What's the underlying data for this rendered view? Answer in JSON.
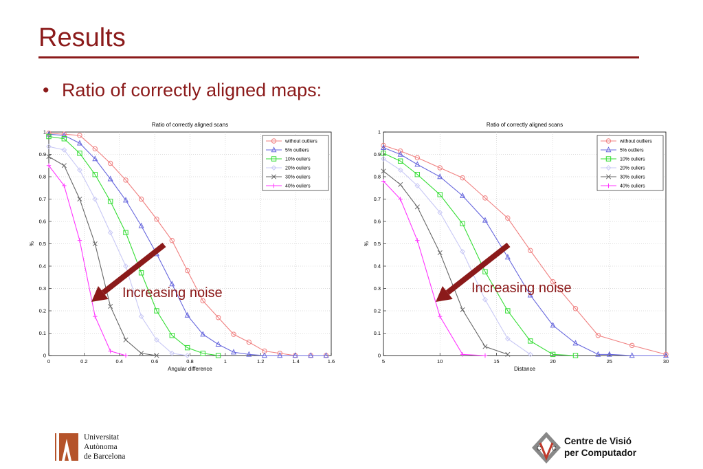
{
  "slide": {
    "title": "Results",
    "bullet": "Ratio of correctly aligned maps:",
    "bullet_marker": "•",
    "annotation": "Increasing noise",
    "accent_color": "#8B1A1A",
    "arrow_color": "#8B1A1A"
  },
  "logos": {
    "left": {
      "icon": "uab-logo-icon",
      "lines": [
        "Universitat",
        "Autònoma",
        "de Barcelona"
      ],
      "color": "#B5532A"
    },
    "right": {
      "icon": "cvc-logo-icon",
      "lines": [
        "Centre de Visió",
        "per Computador"
      ],
      "color": "#C0392B"
    }
  },
  "chart_data": [
    {
      "type": "line",
      "title": "Ratio of correctly aligned scans",
      "xlabel": "Angular difference",
      "ylabel": "%",
      "xlim": [
        0,
        1.6
      ],
      "ylim": [
        0,
        1
      ],
      "xticks": [
        0,
        0.2,
        0.4,
        0.6,
        0.8,
        1,
        1.2,
        1.4,
        1.6
      ],
      "yticks": [
        0,
        0.1,
        0.2,
        0.3,
        0.4,
        0.5,
        0.6,
        0.7,
        0.8,
        0.9,
        1
      ],
      "grid": true,
      "legend": "top-right",
      "series": [
        {
          "name": "without outliers",
          "color": "#F08080",
          "marker": "circle",
          "x": [
            0,
            0.087,
            0.175,
            0.262,
            0.349,
            0.436,
            0.524,
            0.611,
            0.698,
            0.785,
            0.873,
            0.96,
            1.047,
            1.134,
            1.222,
            1.309,
            1.396,
            1.484,
            1.571
          ],
          "y": [
            0.995,
            0.99,
            0.985,
            0.925,
            0.86,
            0.785,
            0.7,
            0.61,
            0.515,
            0.38,
            0.245,
            0.17,
            0.095,
            0.06,
            0.02,
            0.01,
            0,
            0,
            0
          ]
        },
        {
          "name": "5% outliers",
          "color": "#6666DD",
          "marker": "triangle",
          "x": [
            0,
            0.087,
            0.175,
            0.262,
            0.349,
            0.436,
            0.524,
            0.611,
            0.698,
            0.785,
            0.873,
            0.96,
            1.047,
            1.134,
            1.222,
            1.309,
            1.396,
            1.484,
            1.571
          ],
          "y": [
            0.99,
            0.985,
            0.95,
            0.88,
            0.79,
            0.695,
            0.58,
            0.455,
            0.32,
            0.18,
            0.095,
            0.05,
            0.015,
            0.005,
            0,
            0,
            0,
            0,
            0
          ]
        },
        {
          "name": "10% ouliers",
          "color": "#33DD33",
          "marker": "square",
          "x": [
            0,
            0.087,
            0.175,
            0.262,
            0.349,
            0.436,
            0.524,
            0.611,
            0.698,
            0.785,
            0.873,
            0.96
          ],
          "y": [
            0.98,
            0.97,
            0.905,
            0.81,
            0.69,
            0.55,
            0.37,
            0.2,
            0.09,
            0.035,
            0.01,
            0
          ]
        },
        {
          "name": "20% ouliers",
          "color": "#C8C8F5",
          "marker": "diamond",
          "x": [
            0,
            0.087,
            0.175,
            0.262,
            0.349,
            0.436,
            0.524,
            0.611,
            0.698,
            0.785
          ],
          "y": [
            0.935,
            0.92,
            0.83,
            0.7,
            0.55,
            0.4,
            0.175,
            0.07,
            0.01,
            0
          ]
        },
        {
          "name": "30% ouliers",
          "color": "#666666",
          "marker": "x",
          "x": [
            0,
            0.087,
            0.175,
            0.262,
            0.349,
            0.436,
            0.524,
            0.611
          ],
          "y": [
            0.89,
            0.85,
            0.7,
            0.5,
            0.22,
            0.07,
            0.01,
            0
          ]
        },
        {
          "name": "40% ouliers",
          "color": "#FF33FF",
          "marker": "plus",
          "x": [
            0,
            0.087,
            0.175,
            0.262,
            0.349,
            0.436
          ],
          "y": [
            0.85,
            0.76,
            0.515,
            0.175,
            0.02,
            0
          ]
        }
      ]
    },
    {
      "type": "line",
      "title": "Ratio of correctly aligned scans",
      "xlabel": "Distance",
      "ylabel": "%",
      "xlim": [
        5,
        30
      ],
      "ylim": [
        0,
        1
      ],
      "xticks": [
        5,
        10,
        15,
        20,
        25,
        30
      ],
      "yticks": [
        0,
        0.1,
        0.2,
        0.3,
        0.4,
        0.5,
        0.6,
        0.7,
        0.8,
        0.9,
        1
      ],
      "grid": true,
      "legend": "top-right",
      "series": [
        {
          "name": "without outliers",
          "color": "#F08080",
          "marker": "circle",
          "x": [
            5,
            6.5,
            8,
            10,
            12,
            14,
            16,
            18,
            20,
            22,
            24,
            27,
            30
          ],
          "y": [
            0.94,
            0.915,
            0.885,
            0.84,
            0.795,
            0.705,
            0.615,
            0.47,
            0.33,
            0.21,
            0.09,
            0.045,
            0.005
          ]
        },
        {
          "name": "5% outliers",
          "color": "#6666DD",
          "marker": "triangle",
          "x": [
            5,
            6.5,
            8,
            10,
            12,
            14,
            16,
            18,
            20,
            22,
            24,
            25,
            27,
            30
          ],
          "y": [
            0.93,
            0.9,
            0.855,
            0.8,
            0.715,
            0.605,
            0.44,
            0.27,
            0.135,
            0.055,
            0.005,
            0.005,
            0,
            0
          ]
        },
        {
          "name": "10% ouliers",
          "color": "#33DD33",
          "marker": "square",
          "x": [
            5,
            6.5,
            8,
            10,
            12,
            14,
            16,
            18,
            20,
            22
          ],
          "y": [
            0.905,
            0.87,
            0.81,
            0.72,
            0.59,
            0.375,
            0.2,
            0.065,
            0.005,
            0
          ]
        },
        {
          "name": "20% ouliers",
          "color": "#C8C8F5",
          "marker": "diamond",
          "x": [
            5,
            6.5,
            8,
            10,
            12,
            14,
            16,
            18
          ],
          "y": [
            0.88,
            0.83,
            0.76,
            0.64,
            0.465,
            0.25,
            0.075,
            0.005
          ]
        },
        {
          "name": "30% ouliers",
          "color": "#666666",
          "marker": "x",
          "x": [
            5,
            6.5,
            8,
            10,
            12,
            14,
            16
          ],
          "y": [
            0.825,
            0.765,
            0.665,
            0.46,
            0.205,
            0.04,
            0.005
          ]
        },
        {
          "name": "40% ouliers",
          "color": "#FF33FF",
          "marker": "plus",
          "x": [
            5,
            6.5,
            8,
            10,
            12,
            14
          ],
          "y": [
            0.78,
            0.7,
            0.515,
            0.175,
            0.005,
            0
          ]
        }
      ]
    }
  ]
}
